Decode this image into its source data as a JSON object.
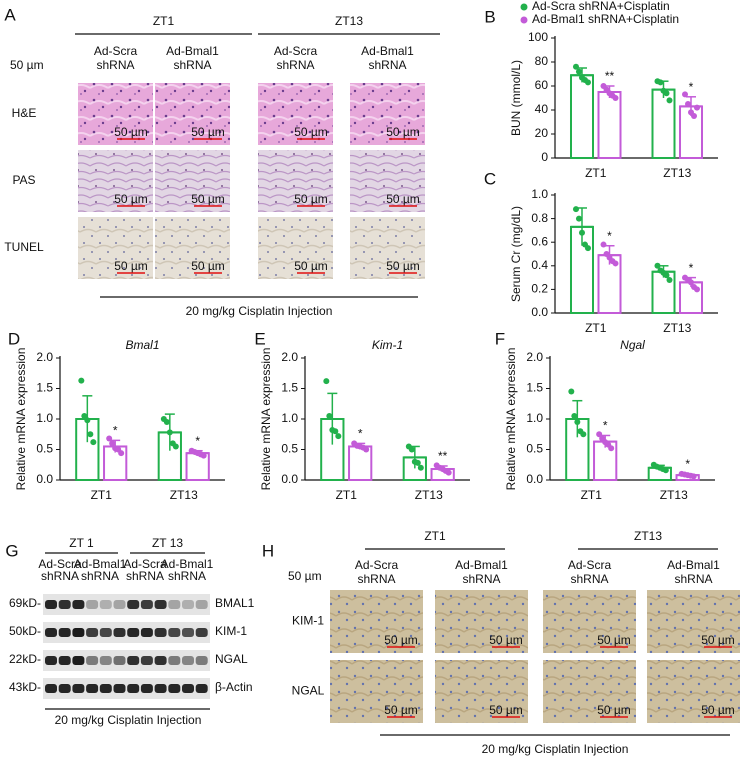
{
  "figure_a": {
    "letter": "A",
    "groups": [
      "ZT1",
      "ZT13"
    ],
    "columns": [
      [
        "Ad-Scra",
        "shRNA"
      ],
      [
        "Ad-Bmal1",
        "shRNA"
      ],
      [
        "Ad-Scra",
        "shRNA"
      ],
      [
        "Ad-Bmal1",
        "shRNA"
      ]
    ],
    "scale_label": "50 µm",
    "rows": [
      "H&E",
      "PAS",
      "TUNEL"
    ],
    "image_scale": "50 µm",
    "footer": "20 mg/kg Cisplatin Injection"
  },
  "chart_data": [
    {
      "panel": "B",
      "type": "bar",
      "ylabel": "BUN (mmol/L)",
      "categories": [
        "ZT1",
        "ZT13"
      ],
      "ylim": [
        0,
        100
      ],
      "yticks": [
        0,
        20,
        40,
        60,
        80,
        100
      ],
      "legend": "top",
      "series": [
        {
          "name": "Ad-Scra shRNA+Cisplatin",
          "color": "#22b14c",
          "values": [
            69,
            57
          ],
          "errors": [
            6,
            7
          ],
          "points": [
            [
              76,
              72,
              67,
              65,
              63
            ],
            [
              64,
              63,
              56,
              54,
              48
            ]
          ]
        },
        {
          "name": "Ad-Bmal1 shRNA+Cisplatin",
          "color": "#c35bd8",
          "values": [
            55,
            43
          ],
          "errors": [
            5,
            8
          ],
          "points": [
            [
              60,
              57,
              54,
              52,
              50
            ],
            [
              53,
              45,
              38,
              35,
              42
            ]
          ],
          "annotations": [
            "**",
            "*"
          ]
        }
      ]
    },
    {
      "panel": "C",
      "type": "bar",
      "ylabel": "Serum Cr (mg/dL)",
      "categories": [
        "ZT1",
        "ZT13"
      ],
      "ylim": [
        0,
        1
      ],
      "yticks": [
        {
          "value": 0,
          "label": "0.0"
        },
        0.2,
        0.4,
        0.6,
        0.8,
        {
          "value": 1,
          "label": "1.0"
        }
      ],
      "series": [
        {
          "color": "#22b14c",
          "values": [
            0.73,
            0.35
          ],
          "errors": [
            0.16,
            0.05
          ],
          "points": [
            [
              0.88,
              0.8,
              0.68,
              0.58,
              0.55
            ],
            [
              0.4,
              0.36,
              0.34,
              0.32,
              0.28
            ]
          ]
        },
        {
          "color": "#c35bd8",
          "values": [
            0.49,
            0.26
          ],
          "errors": [
            0.08,
            0.04
          ],
          "points": [
            [
              0.58,
              0.5,
              0.47,
              0.44,
              0.42
            ],
            [
              0.3,
              0.28,
              0.26,
              0.22,
              0.2
            ]
          ],
          "annotations": [
            "*",
            "*"
          ]
        }
      ]
    },
    {
      "panel": "D",
      "type": "bar",
      "title": "Bmal1",
      "ylabel": "Relative mRNA expression",
      "categories": [
        "ZT1",
        "ZT13"
      ],
      "ylim": [
        0,
        2
      ],
      "yticks": [
        {
          "value": 0,
          "label": "0.0"
        },
        0.5,
        {
          "value": 1,
          "label": "1.0"
        },
        1.5,
        {
          "value": 2,
          "label": "2.0"
        }
      ],
      "series": [
        {
          "color": "#22b14c",
          "values": [
            1.0,
            0.78
          ],
          "errors": [
            0.38,
            0.3
          ],
          "points": [
            [
              1.63,
              1.05,
              0.98,
              0.75,
              0.62
            ],
            [
              1.0,
              0.95,
              0.78,
              0.6,
              0.55
            ]
          ]
        },
        {
          "color": "#c35bd8",
          "values": [
            0.55,
            0.44
          ],
          "errors": [
            0.1,
            0.04
          ],
          "points": [
            [
              0.68,
              0.6,
              0.52,
              0.5,
              0.44
            ],
            [
              0.48,
              0.46,
              0.44,
              0.42,
              0.4
            ]
          ],
          "annotations": [
            "*",
            "*"
          ]
        }
      ]
    },
    {
      "panel": "E",
      "type": "bar",
      "title": "Kim-1",
      "ylabel": "Relative mRNA expression",
      "categories": [
        "ZT1",
        "ZT13"
      ],
      "ylim": [
        0,
        2
      ],
      "yticks": [
        {
          "value": 0,
          "label": "0.0"
        },
        0.5,
        {
          "value": 1,
          "label": "1.0"
        },
        1.5,
        {
          "value": 2,
          "label": "2.0"
        }
      ],
      "series": [
        {
          "color": "#22b14c",
          "values": [
            1.0,
            0.37
          ],
          "errors": [
            0.42,
            0.18
          ],
          "points": [
            [
              1.62,
              1.05,
              0.82,
              0.8,
              0.72
            ],
            [
              0.55,
              0.5,
              0.3,
              0.28,
              0.2
            ]
          ]
        },
        {
          "color": "#c35bd8",
          "values": [
            0.55,
            0.18
          ],
          "errors": [
            0.05,
            0.05
          ],
          "points": [
            [
              0.6,
              0.56,
              0.55,
              0.53,
              0.5
            ],
            [
              0.24,
              0.2,
              0.18,
              0.15,
              0.12
            ]
          ],
          "annotations": [
            "*",
            "**"
          ]
        }
      ]
    },
    {
      "panel": "F",
      "type": "bar",
      "title": "Ngal",
      "ylabel": "Relative mRNA expression",
      "categories": [
        "ZT1",
        "ZT13"
      ],
      "ylim": [
        0,
        2
      ],
      "yticks": [
        {
          "value": 0,
          "label": "0.0"
        },
        0.5,
        {
          "value": 1,
          "label": "1.0"
        },
        1.5,
        {
          "value": 2,
          "label": "2.0"
        }
      ],
      "series": [
        {
          "color": "#22b14c",
          "values": [
            1.0,
            0.2
          ],
          "errors": [
            0.3,
            0.04
          ],
          "points": [
            [
              1.45,
              1.05,
              0.95,
              0.8,
              0.75
            ],
            [
              0.25,
              0.22,
              0.2,
              0.18,
              0.16
            ]
          ]
        },
        {
          "color": "#c35bd8",
          "values": [
            0.63,
            0.08
          ],
          "errors": [
            0.1,
            0.02
          ],
          "points": [
            [
              0.75,
              0.68,
              0.62,
              0.58,
              0.52
            ],
            [
              0.1,
              0.09,
              0.08,
              0.07,
              0.06
            ]
          ],
          "annotations": [
            "*",
            "*"
          ]
        }
      ]
    }
  ],
  "figure_g": {
    "letter": "G",
    "groups": [
      "ZT 1",
      "ZT 13"
    ],
    "columns": [
      [
        "Ad-Scra",
        "shRNA"
      ],
      [
        "Ad-Bmal1",
        "shRNA"
      ],
      [
        "Ad-Scra",
        "shRNA"
      ],
      [
        "Ad-Bmal1",
        "shRNA"
      ]
    ],
    "markers": [
      "69kD-",
      "50kD-",
      "22kD-",
      "43kD-"
    ],
    "proteins": [
      "BMAL1",
      "KIM-1",
      "NGAL",
      "β-Actin"
    ],
    "footer": "20 mg/kg Cisplatin Injection"
  },
  "figure_h": {
    "letter": "H",
    "groups": [
      "ZT1",
      "ZT13"
    ],
    "columns": [
      [
        "Ad-Scra",
        "shRNA"
      ],
      [
        "Ad-Bmal1",
        "shRNA"
      ],
      [
        "Ad-Scra",
        "shRNA"
      ],
      [
        "Ad-Bmal1",
        "shRNA"
      ]
    ],
    "scale_label": "50 µm",
    "rows": [
      "KIM-1",
      "NGAL"
    ],
    "image_scale": "50 µm",
    "footer": "20 mg/kg Cisplatin Injection"
  }
}
